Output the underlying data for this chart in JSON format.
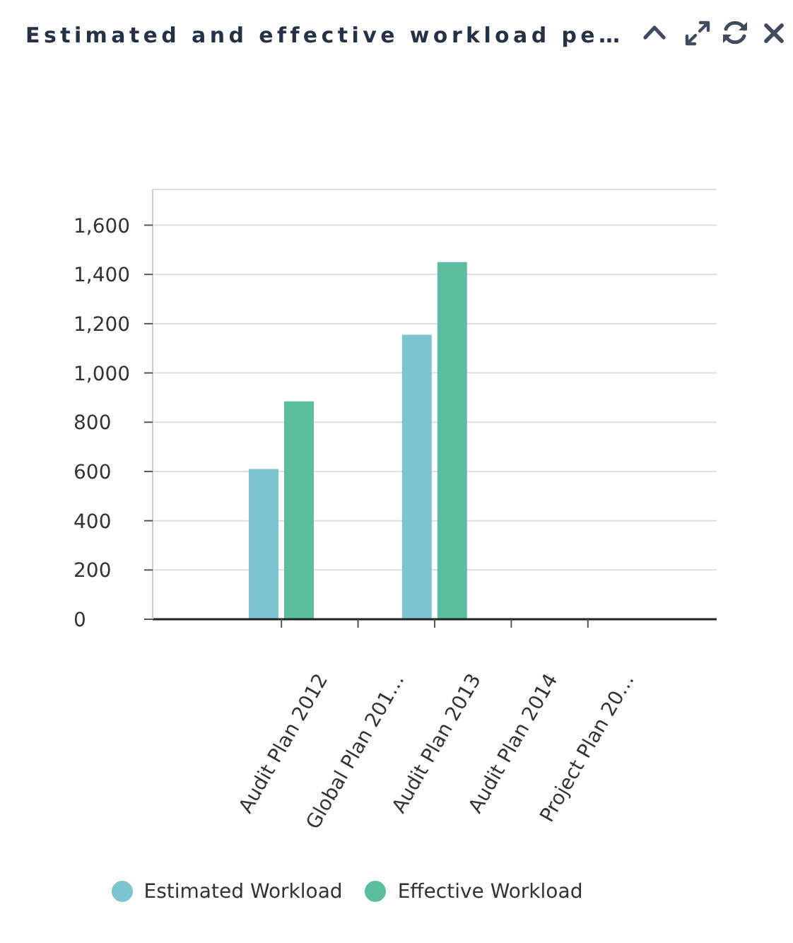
{
  "chart_data": {
    "type": "bar",
    "title": "Estimated and effective workload pe…",
    "categories": [
      "Audit Plan 2012",
      "Global Plan 201…",
      "Audit Plan 2013",
      "Audit Plan 2014",
      "Project Plan 20…"
    ],
    "series": [
      {
        "name": "Estimated Workload",
        "color": "#7cc5cf",
        "values": [
          610,
          null,
          1155,
          null,
          null
        ]
      },
      {
        "name": "Effective Workload",
        "color": "#5bbda0",
        "values": [
          885,
          null,
          1450,
          null,
          null
        ]
      }
    ],
    "ylim": [
      0,
      1745
    ],
    "yticks": [
      0,
      200,
      400,
      600,
      800,
      {
        "value": 1000,
        "label": "1,000"
      },
      {
        "value": 1200,
        "label": "1,200"
      },
      {
        "value": 1400,
        "label": "1,400"
      },
      {
        "value": 1600,
        "label": "1,600"
      }
    ],
    "grid": "y",
    "legend": "bottom"
  }
}
